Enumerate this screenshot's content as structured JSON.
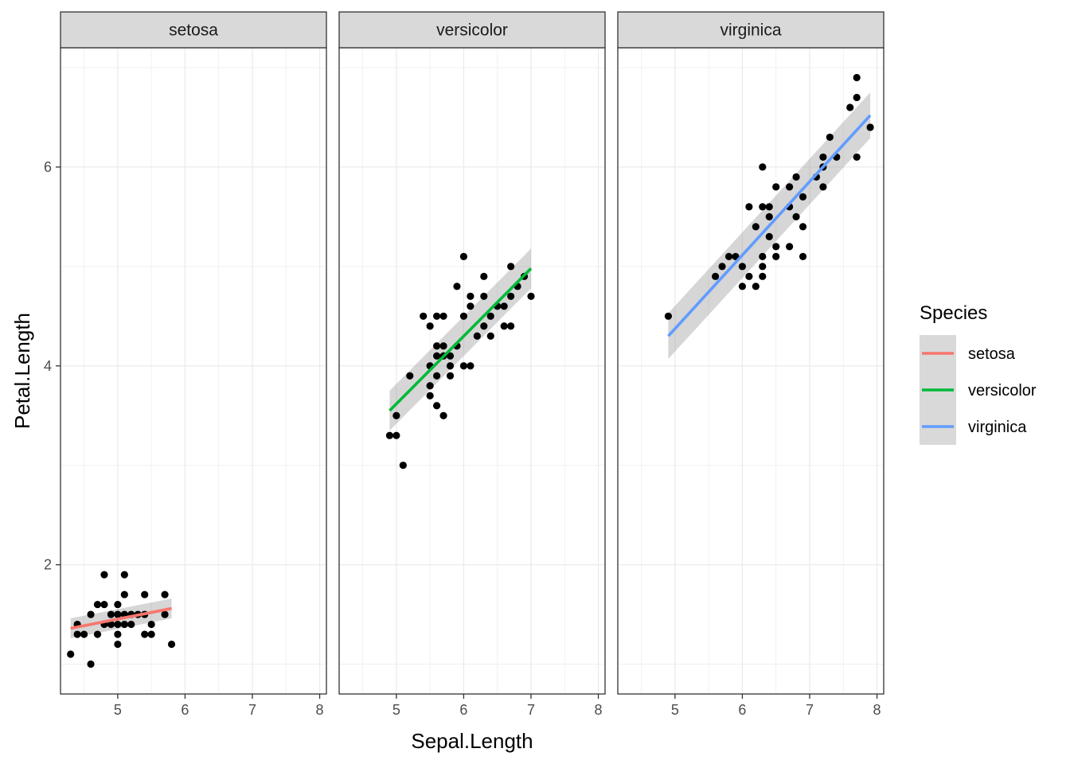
{
  "chart_data": {
    "type": "scatter",
    "facet_by": "Species",
    "xlabel": "Sepal.Length",
    "ylabel": "Petal.Length",
    "xlim": [
      4.15,
      8.1
    ],
    "ylim": [
      0.7,
      7.2
    ],
    "x_ticks": [
      5,
      6,
      7,
      8
    ],
    "y_ticks": [
      2,
      4,
      6
    ],
    "grid": true,
    "legend": {
      "title": "Species",
      "position": "right",
      "entries": [
        {
          "label": "setosa",
          "color": "#F8766D"
        },
        {
          "label": "versicolor",
          "color": "#00BA38"
        },
        {
          "label": "virginica",
          "color": "#619CFF"
        }
      ]
    },
    "panels": [
      {
        "name": "setosa",
        "color": "#F8766D",
        "fit": {
          "x": [
            4.3,
            5.8
          ],
          "y": [
            1.36,
            1.56
          ],
          "ci_half": [
            0.1,
            0.1
          ]
        },
        "points": [
          [
            4.3,
            1.1
          ],
          [
            4.4,
            1.3
          ],
          [
            4.4,
            1.4
          ],
          [
            4.5,
            1.3
          ],
          [
            4.6,
            1.0
          ],
          [
            4.6,
            1.5
          ],
          [
            4.7,
            1.3
          ],
          [
            4.7,
            1.6
          ],
          [
            4.8,
            1.4
          ],
          [
            4.8,
            1.6
          ],
          [
            4.8,
            1.9
          ],
          [
            4.9,
            1.4
          ],
          [
            4.9,
            1.5
          ],
          [
            5.0,
            1.2
          ],
          [
            5.0,
            1.3
          ],
          [
            5.0,
            1.4
          ],
          [
            5.0,
            1.5
          ],
          [
            5.0,
            1.6
          ],
          [
            5.1,
            1.4
          ],
          [
            5.1,
            1.5
          ],
          [
            5.1,
            1.7
          ],
          [
            5.1,
            1.9
          ],
          [
            5.2,
            1.4
          ],
          [
            5.2,
            1.5
          ],
          [
            5.3,
            1.5
          ],
          [
            5.4,
            1.3
          ],
          [
            5.4,
            1.5
          ],
          [
            5.4,
            1.7
          ],
          [
            5.5,
            1.3
          ],
          [
            5.5,
            1.4
          ],
          [
            5.7,
            1.5
          ],
          [
            5.7,
            1.7
          ],
          [
            5.8,
            1.2
          ]
        ]
      },
      {
        "name": "versicolor",
        "color": "#00BA38",
        "fit": {
          "x": [
            4.9,
            7.0
          ],
          "y": [
            3.55,
            4.98
          ],
          "ci_half": [
            0.2,
            0.2
          ]
        },
        "points": [
          [
            4.9,
            3.3
          ],
          [
            5.0,
            3.3
          ],
          [
            5.0,
            3.5
          ],
          [
            5.1,
            3.0
          ],
          [
            5.2,
            3.9
          ],
          [
            5.4,
            4.5
          ],
          [
            5.5,
            3.7
          ],
          [
            5.5,
            3.8
          ],
          [
            5.5,
            4.0
          ],
          [
            5.5,
            4.4
          ],
          [
            5.6,
            3.6
          ],
          [
            5.6,
            3.9
          ],
          [
            5.6,
            4.1
          ],
          [
            5.6,
            4.2
          ],
          [
            5.6,
            4.5
          ],
          [
            5.7,
            3.5
          ],
          [
            5.7,
            4.1
          ],
          [
            5.7,
            4.2
          ],
          [
            5.7,
            4.5
          ],
          [
            5.8,
            3.9
          ],
          [
            5.8,
            4.0
          ],
          [
            5.8,
            4.1
          ],
          [
            5.9,
            4.2
          ],
          [
            5.9,
            4.8
          ],
          [
            6.0,
            4.0
          ],
          [
            6.0,
            4.5
          ],
          [
            6.0,
            5.1
          ],
          [
            6.1,
            4.0
          ],
          [
            6.1,
            4.6
          ],
          [
            6.1,
            4.7
          ],
          [
            6.2,
            4.3
          ],
          [
            6.3,
            4.4
          ],
          [
            6.3,
            4.7
          ],
          [
            6.3,
            4.9
          ],
          [
            6.4,
            4.3
          ],
          [
            6.4,
            4.5
          ],
          [
            6.5,
            4.6
          ],
          [
            6.6,
            4.4
          ],
          [
            6.6,
            4.6
          ],
          [
            6.7,
            4.4
          ],
          [
            6.7,
            4.7
          ],
          [
            6.7,
            5.0
          ],
          [
            6.8,
            4.8
          ],
          [
            6.9,
            4.9
          ],
          [
            7.0,
            4.7
          ]
        ]
      },
      {
        "name": "virginica",
        "color": "#619CFF",
        "fit": {
          "x": [
            4.9,
            7.9
          ],
          "y": [
            4.3,
            6.52
          ],
          "ci_half": [
            0.23,
            0.23
          ]
        },
        "points": [
          [
            4.9,
            4.5
          ],
          [
            5.6,
            4.9
          ],
          [
            5.7,
            5.0
          ],
          [
            5.8,
            5.1
          ],
          [
            5.9,
            5.1
          ],
          [
            6.0,
            4.8
          ],
          [
            6.0,
            5.0
          ],
          [
            6.1,
            4.9
          ],
          [
            6.1,
            5.6
          ],
          [
            6.2,
            4.8
          ],
          [
            6.2,
            5.4
          ],
          [
            6.3,
            4.9
          ],
          [
            6.3,
            5.0
          ],
          [
            6.3,
            5.1
          ],
          [
            6.3,
            5.6
          ],
          [
            6.3,
            6.0
          ],
          [
            6.4,
            5.3
          ],
          [
            6.4,
            5.5
          ],
          [
            6.4,
            5.6
          ],
          [
            6.5,
            5.1
          ],
          [
            6.5,
            5.2
          ],
          [
            6.5,
            5.8
          ],
          [
            6.7,
            5.2
          ],
          [
            6.7,
            5.6
          ],
          [
            6.7,
            5.8
          ],
          [
            6.8,
            5.5
          ],
          [
            6.8,
            5.9
          ],
          [
            6.9,
            5.1
          ],
          [
            6.9,
            5.4
          ],
          [
            6.9,
            5.7
          ],
          [
            7.1,
            5.9
          ],
          [
            7.2,
            5.8
          ],
          [
            7.2,
            6.0
          ],
          [
            7.2,
            6.1
          ],
          [
            7.3,
            6.3
          ],
          [
            7.4,
            6.1
          ],
          [
            7.6,
            6.6
          ],
          [
            7.7,
            6.1
          ],
          [
            7.7,
            6.7
          ],
          [
            7.7,
            6.9
          ],
          [
            7.9,
            6.4
          ]
        ]
      }
    ]
  }
}
